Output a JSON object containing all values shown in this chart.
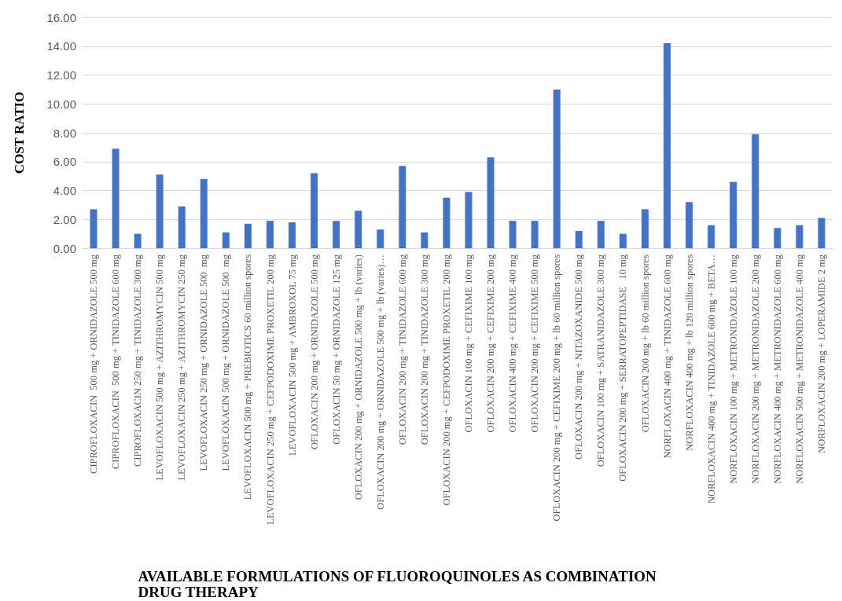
{
  "chart_data": {
    "type": "bar",
    "xlabel": "AVAILABLE FORMULATIONS OF FLUOROQUINOLES AS COMBINATION DRUG THERAPY",
    "ylabel": "COST RATIO",
    "categories": [
      "CIPROFLOXACIN  500 mg + ORNIDAZOLE 500 mg",
      "CIPROFLOXACIN  500 mg + TINIDAZOLE 600 mg",
      "CIPROFLOXACIN 250 mg + TINIDAZOLE 300 mg",
      "LEVOFLOXACIN 500 mg + AZITHROMYCIN 500 mg",
      "LEVOFLOXACIN 250 mg + AZITHROMYCIN 250 mg",
      "LEVOFLOXACIN 250 mg + ORNIDAZOLE 500  mg",
      "LEVOFLOXACIN 500 mg + ORNIDAZOLE 500  mg",
      "LEVOFLOXACIN 500 mg + PREBIOTICS 60 million spores",
      "LEVOFLOXACIN 250 mg + CEFPODOXIME PROXETIL 200 mg",
      "LEVOFLOXACIN 500 mg + AMBROXOL 75 mg",
      "OFLOXACIN 200 mg + ORNIDAZOLE 500 mg",
      "OFLOXACIN 50 mg + ORNIDAZOLE 125 mg",
      "OFLOXACIN 200 mg + ORNIDAZOLE 500 mg + lb (varies)",
      "OFLOXACIN 200 mg + ORNIDAZOLE 500 mg + lb (varies)…",
      "OFLOXACIN 200 mg + TINIDAZOLE 600 mg",
      "OFLOXACIN 200 mg + TINIDAZOLE 300 mg",
      "OFLOXACIN 200 mg + CEFPODOXIME PROXETIL 200 mg",
      "OFLOXACIN 100 mg + CEFIXIME 100 mg",
      "OFLOXACIN 200 mg + CEFIXIME 200 mg",
      "OFLOXACIN 400 mg + CEFIXIME 400 mg",
      "OFLOXACIN 200 mg + CEFIXIME 500 mg",
      "OFLOXACIN 200 mg + CEFIXIME 200 mg + lb 60 million spores",
      "OFLOXACIN 200 mg + NITAZOXANIDE 500 mg",
      "OFLOXACIN 100 mg + SATRANIDAZOLE 300 mg",
      "OFLOXACIN 200 mg + SERRATOPEPTIDASE   10 mg",
      "OFLOXACIN 200 mg + lb 60 million spores",
      "NORFLOXACIN 400 mg + TINIDAZOLE 600 mg",
      "NORFLOXACIN 400 mg + lb 120 million spores",
      "NORFLOXACIN 400 mg + TINIDAZOLE 600 mg + BETA…",
      "NORFLOXACIN 100 mg + METRONIDAZOLE 100 mg",
      "NORFLOXACIN 200 mg + METRONIDAZOLE 200 mg",
      "NORFLOXACIN 400 mg + METRONIDAZOLE 600 mg",
      "NORFLOXACIN 500 mg + METRONIDAZOLE 400 mg",
      "NORFLOXACIN 200 mg + LOPERAMIDE 2 mg"
    ],
    "values": [
      2.7,
      6.9,
      1.0,
      5.1,
      2.9,
      4.8,
      1.1,
      1.7,
      1.9,
      1.8,
      5.2,
      1.9,
      2.6,
      1.3,
      5.7,
      1.1,
      3.5,
      3.9,
      6.3,
      1.9,
      1.9,
      11.0,
      1.2,
      1.9,
      1.0,
      2.7,
      14.2,
      3.2,
      1.6,
      4.6,
      7.9,
      1.4,
      1.6,
      2.1
    ],
    "color": "#4472c4",
    "ylim": [
      0,
      16
    ],
    "yticks": [
      {
        "value": 0,
        "label": "0.00"
      },
      {
        "value": 2,
        "label": "2.00"
      },
      {
        "value": 4,
        "label": "4.00"
      },
      {
        "value": 6,
        "label": "6.00"
      },
      {
        "value": 8,
        "label": "8.00"
      },
      {
        "value": 10,
        "label": "10.00"
      },
      {
        "value": 12,
        "label": "12.00"
      },
      {
        "value": 14,
        "label": "14.00"
      },
      {
        "value": 16,
        "label": "16.00"
      }
    ],
    "grid": "y"
  }
}
